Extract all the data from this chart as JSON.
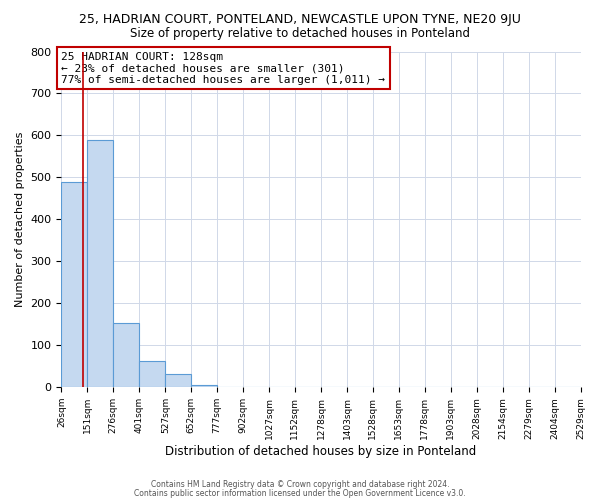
{
  "title": "25, HADRIAN COURT, PONTELAND, NEWCASTLE UPON TYNE, NE20 9JU",
  "subtitle": "Size of property relative to detached houses in Ponteland",
  "xlabel": "Distribution of detached houses by size in Ponteland",
  "ylabel": "Number of detached properties",
  "bar_edges": [
    26,
    151,
    276,
    401,
    527,
    652,
    777,
    902,
    1027,
    1152,
    1278,
    1403,
    1528,
    1653,
    1778,
    1903,
    2028,
    2154,
    2279,
    2404,
    2529
  ],
  "bar_heights": [
    490,
    590,
    152,
    62,
    32,
    5,
    0,
    0,
    0,
    0,
    0,
    0,
    0,
    0,
    0,
    0,
    0,
    0,
    0,
    0
  ],
  "bar_color": "#c5d9f0",
  "bar_edge_color": "#5b9bd5",
  "property_size": 128,
  "vline_color": "#c00000",
  "ylim": [
    0,
    800
  ],
  "annotation_text": "25 HADRIAN COURT: 128sqm\n← 23% of detached houses are smaller (301)\n77% of semi-detached houses are larger (1,011) →",
  "annotation_box_color": "#ffffff",
  "annotation_box_edge_color": "#c00000",
  "footer_line1": "Contains HM Land Registry data © Crown copyright and database right 2024.",
  "footer_line2": "Contains public sector information licensed under the Open Government Licence v3.0.",
  "background_color": "#ffffff",
  "grid_color": "#d0d8e8"
}
